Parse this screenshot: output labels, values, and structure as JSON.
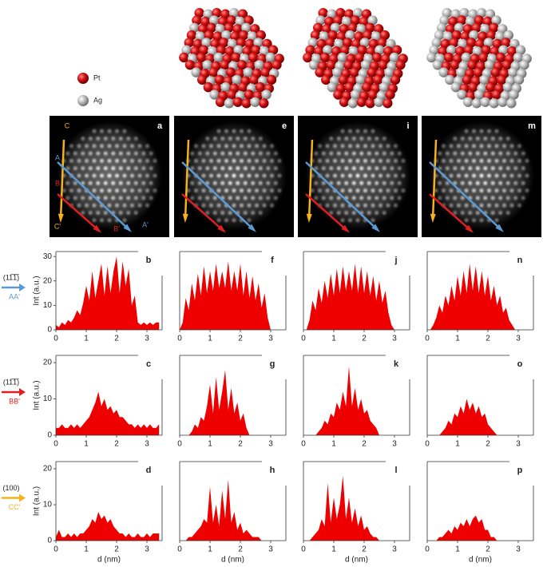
{
  "legend": {
    "items": [
      {
        "name": "Pt",
        "color": "#d01818"
      },
      {
        "name": "Ag",
        "color": "#b8b8b8"
      }
    ]
  },
  "images": [
    {
      "label": "a"
    },
    {
      "label": "e"
    },
    {
      "label": "i"
    },
    {
      "label": "m"
    }
  ],
  "image_annotations": {
    "start": [
      "C",
      "A",
      "B"
    ],
    "end": [
      "C'",
      "B'",
      "A'"
    ]
  },
  "row_labels": [
    {
      "plane": "(11̅1̅)",
      "path": "AA'",
      "color": "#5b9bd5"
    },
    {
      "plane": "(11̅1̅)",
      "path": "BB'",
      "color": "#e02020"
    },
    {
      "plane": "(100)",
      "path": "CC'",
      "color": "#f5b21c"
    }
  ],
  "chart_data": [
    {
      "type": "area",
      "panel": "b",
      "color": "#ee0000",
      "ylabel": "Int (a.u.)",
      "xlim": [
        0,
        3.5
      ],
      "xticks": [
        0,
        1,
        2,
        3
      ],
      "ylim": [
        0,
        32
      ],
      "yticks": [
        0,
        10,
        20,
        30
      ],
      "x": [
        0,
        0.1,
        0.2,
        0.3,
        0.4,
        0.5,
        0.6,
        0.7,
        0.8,
        0.9,
        1,
        1.1,
        1.2,
        1.3,
        1.4,
        1.5,
        1.6,
        1.7,
        1.8,
        1.9,
        2,
        2.1,
        2.2,
        2.3,
        2.4,
        2.5,
        2.6,
        2.7,
        2.8,
        2.9,
        3,
        3.1,
        3.2,
        3.3,
        3.4
      ],
      "values": [
        2,
        1,
        3,
        2,
        4,
        3,
        5,
        8,
        6,
        11,
        18,
        12,
        24,
        13,
        20,
        27,
        14,
        26,
        15,
        24,
        30,
        15,
        28,
        18,
        25,
        10,
        14,
        3,
        2,
        3,
        2,
        3,
        2,
        3,
        3
      ]
    },
    {
      "type": "area",
      "panel": "f",
      "color": "#ee0000",
      "xlim": [
        0,
        3.5
      ],
      "xticks": [
        0,
        1,
        2,
        3
      ],
      "ylim": [
        0,
        32
      ],
      "x": [
        0,
        0.1,
        0.2,
        0.3,
        0.4,
        0.5,
        0.6,
        0.7,
        0.8,
        0.9,
        1,
        1.1,
        1.2,
        1.3,
        1.4,
        1.5,
        1.6,
        1.7,
        1.8,
        1.9,
        2,
        2.1,
        2.2,
        2.3,
        2.4,
        2.5,
        2.6,
        2.7,
        2.8,
        2.9,
        3,
        3.1,
        3.2,
        3.3,
        3.4
      ],
      "values": [
        0,
        3,
        13,
        8,
        19,
        12,
        23,
        14,
        26,
        15,
        24,
        16,
        27,
        17,
        24,
        17,
        28,
        16,
        24,
        16,
        27,
        14,
        24,
        13,
        22,
        12,
        19,
        9,
        15,
        5,
        0,
        0,
        0,
        0,
        0
      ]
    },
    {
      "type": "area",
      "panel": "j",
      "color": "#ee0000",
      "xlim": [
        0,
        3.5
      ],
      "xticks": [
        0,
        1,
        2,
        3
      ],
      "ylim": [
        0,
        32
      ],
      "x": [
        0,
        0.1,
        0.2,
        0.3,
        0.4,
        0.5,
        0.6,
        0.7,
        0.8,
        0.9,
        1,
        1.1,
        1.2,
        1.3,
        1.4,
        1.5,
        1.6,
        1.7,
        1.8,
        1.9,
        2,
        2.1,
        2.2,
        2.3,
        2.4,
        2.5,
        2.6,
        2.7,
        2.8,
        2.9,
        3,
        3.1,
        3.2,
        3.3,
        3.4
      ],
      "values": [
        0,
        0,
        4,
        12,
        8,
        17,
        11,
        20,
        13,
        23,
        14,
        25,
        15,
        26,
        16,
        24,
        16,
        27,
        15,
        26,
        15,
        24,
        14,
        22,
        12,
        20,
        11,
        16,
        7,
        2,
        0,
        0,
        0,
        0,
        0
      ]
    },
    {
      "type": "area",
      "panel": "n",
      "color": "#ee0000",
      "xlim": [
        0,
        3.5
      ],
      "xticks": [
        0,
        1,
        2,
        3
      ],
      "ylim": [
        0,
        32
      ],
      "x": [
        0,
        0.1,
        0.2,
        0.3,
        0.4,
        0.5,
        0.6,
        0.7,
        0.8,
        0.9,
        1,
        1.1,
        1.2,
        1.3,
        1.4,
        1.5,
        1.6,
        1.7,
        1.8,
        1.9,
        2,
        2.1,
        2.2,
        2.3,
        2.4,
        2.5,
        2.6,
        2.7,
        2.8,
        2.9,
        3,
        3.1,
        3.2,
        3.3,
        3.4
      ],
      "values": [
        0,
        0,
        2,
        5,
        10,
        7,
        14,
        10,
        18,
        12,
        22,
        14,
        24,
        15,
        27,
        16,
        26,
        15,
        24,
        14,
        22,
        12,
        18,
        10,
        14,
        7,
        9,
        4,
        2,
        0,
        0,
        0,
        0,
        0,
        0
      ]
    },
    {
      "type": "area",
      "panel": "c",
      "color": "#ee0000",
      "ylabel": "Int (a.u.)",
      "xlim": [
        0,
        3.5
      ],
      "xticks": [
        0,
        1,
        2,
        3
      ],
      "ylim": [
        0,
        22
      ],
      "yticks": [
        0,
        10,
        20
      ],
      "x": [
        0,
        0.1,
        0.2,
        0.3,
        0.4,
        0.5,
        0.6,
        0.7,
        0.8,
        0.9,
        1,
        1.1,
        1.2,
        1.3,
        1.4,
        1.5,
        1.6,
        1.7,
        1.8,
        1.9,
        2,
        2.1,
        2.2,
        2.3,
        2.4,
        2.5,
        2.6,
        2.7,
        2.8,
        2.9,
        3,
        3.1,
        3.2,
        3.3,
        3.4
      ],
      "values": [
        2,
        2,
        3,
        2,
        2,
        3,
        2,
        3,
        2,
        3,
        4,
        5,
        7,
        9,
        12,
        8,
        10,
        7,
        8,
        6,
        7,
        5,
        5,
        4,
        3,
        3,
        2,
        3,
        2,
        3,
        2,
        3,
        2,
        2,
        3
      ]
    },
    {
      "type": "area",
      "panel": "g",
      "color": "#ee0000",
      "xlim": [
        0,
        3.5
      ],
      "xticks": [
        0,
        1,
        2,
        3
      ],
      "ylim": [
        0,
        22
      ],
      "x": [
        0,
        0.1,
        0.2,
        0.3,
        0.4,
        0.5,
        0.6,
        0.7,
        0.8,
        0.9,
        1,
        1.1,
        1.2,
        1.3,
        1.4,
        1.5,
        1.6,
        1.7,
        1.8,
        1.9,
        2,
        2.1,
        2.2,
        2.3,
        2.4,
        2.5,
        2.6,
        2.7,
        2.8,
        2.9,
        3,
        3.1,
        3.2,
        3.3,
        3.4
      ],
      "values": [
        0,
        0,
        0,
        0,
        1,
        3,
        2,
        5,
        4,
        8,
        14,
        6,
        16,
        7,
        12,
        18,
        7,
        13,
        6,
        9,
        4,
        6,
        2,
        0,
        0,
        0,
        0,
        0,
        0,
        0,
        0,
        0,
        0,
        0,
        0
      ]
    },
    {
      "type": "area",
      "panel": "k",
      "color": "#ee0000",
      "xlim": [
        0,
        3.5
      ],
      "xticks": [
        0,
        1,
        2,
        3
      ],
      "ylim": [
        0,
        22
      ],
      "x": [
        0,
        0.1,
        0.2,
        0.3,
        0.4,
        0.5,
        0.6,
        0.7,
        0.8,
        0.9,
        1,
        1.1,
        1.2,
        1.3,
        1.4,
        1.5,
        1.6,
        1.7,
        1.8,
        1.9,
        2,
        2.1,
        2.2,
        2.3,
        2.4,
        2.5,
        2.6,
        2.7,
        2.8,
        2.9,
        3,
        3.1,
        3.2,
        3.3,
        3.4
      ],
      "values": [
        0,
        0,
        0,
        0,
        0,
        1,
        2,
        4,
        3,
        6,
        5,
        9,
        7,
        12,
        8,
        19,
        8,
        13,
        7,
        10,
        6,
        7,
        4,
        3,
        2,
        0,
        0,
        0,
        0,
        0,
        0,
        0,
        0,
        0,
        0
      ]
    },
    {
      "type": "area",
      "panel": "o",
      "color": "#ee0000",
      "xlim": [
        0,
        3.5
      ],
      "xticks": [
        0,
        1,
        2,
        3
      ],
      "ylim": [
        0,
        22
      ],
      "x": [
        0,
        0.1,
        0.2,
        0.3,
        0.4,
        0.5,
        0.6,
        0.7,
        0.8,
        0.9,
        1,
        1.1,
        1.2,
        1.3,
        1.4,
        1.5,
        1.6,
        1.7,
        1.8,
        1.9,
        2,
        2.1,
        2.2,
        2.3,
        2.4,
        2.5,
        2.6,
        2.7,
        2.8,
        2.9,
        3,
        3.1,
        3.2,
        3.3,
        3.4
      ],
      "values": [
        0,
        0,
        0,
        0,
        0,
        1,
        2,
        4,
        3,
        6,
        5,
        8,
        6,
        10,
        7,
        9,
        6,
        8,
        5,
        6,
        3,
        2,
        1,
        0,
        0,
        0,
        0,
        0,
        0,
        0,
        0,
        0,
        0,
        0,
        0
      ]
    },
    {
      "type": "area",
      "panel": "d",
      "color": "#ee0000",
      "ylabel": "Int (a.u.)",
      "xlabel": "d (nm)",
      "xlim": [
        0,
        3.5
      ],
      "xticks": [
        0,
        1,
        2,
        3
      ],
      "ylim": [
        0,
        22
      ],
      "yticks": [
        0,
        10,
        20
      ],
      "x": [
        0,
        0.1,
        0.2,
        0.3,
        0.4,
        0.5,
        0.6,
        0.7,
        0.8,
        0.9,
        1,
        1.1,
        1.2,
        1.3,
        1.4,
        1.5,
        1.6,
        1.7,
        1.8,
        1.9,
        2,
        2.1,
        2.2,
        2.3,
        2.4,
        2.5,
        2.6,
        2.7,
        2.8,
        2.9,
        3,
        3.1,
        3.2,
        3.3,
        3.4
      ],
      "values": [
        1,
        3,
        1,
        1,
        2,
        1,
        2,
        1,
        2,
        2,
        3,
        4,
        6,
        5,
        8,
        6,
        7,
        5,
        6,
        4,
        3,
        2,
        2,
        1,
        2,
        1,
        1,
        2,
        1,
        1,
        2,
        1,
        2,
        2,
        2
      ]
    },
    {
      "type": "area",
      "panel": "h",
      "color": "#ee0000",
      "xlabel": "d (nm)",
      "xlim": [
        0,
        3.5
      ],
      "xticks": [
        0,
        1,
        2,
        3
      ],
      "ylim": [
        0,
        22
      ],
      "x": [
        0,
        0.1,
        0.2,
        0.3,
        0.4,
        0.5,
        0.6,
        0.7,
        0.8,
        0.9,
        1,
        1.1,
        1.2,
        1.3,
        1.4,
        1.5,
        1.6,
        1.7,
        1.8,
        1.9,
        2,
        2.1,
        2.2,
        2.3,
        2.4,
        2.5,
        2.6,
        2.7,
        2.8,
        2.9,
        3,
        3.1,
        3.2,
        3.3,
        3.4
      ],
      "values": [
        0,
        0,
        0,
        1,
        1,
        2,
        3,
        4,
        6,
        5,
        15,
        5,
        10,
        4,
        14,
        6,
        17,
        5,
        8,
        3,
        5,
        2,
        3,
        2,
        1,
        1,
        1,
        0,
        0,
        0,
        0,
        0,
        0,
        0,
        0
      ]
    },
    {
      "type": "area",
      "panel": "l",
      "color": "#ee0000",
      "xlabel": "d (nm)",
      "xlim": [
        0,
        3.5
      ],
      "xticks": [
        0,
        1,
        2,
        3
      ],
      "ylim": [
        0,
        22
      ],
      "x": [
        0,
        0.1,
        0.2,
        0.3,
        0.4,
        0.5,
        0.6,
        0.7,
        0.8,
        0.9,
        1,
        1.1,
        1.2,
        1.3,
        1.4,
        1.5,
        1.6,
        1.7,
        1.8,
        1.9,
        2,
        2.1,
        2.2,
        2.3,
        2.4,
        2.5,
        2.6,
        2.7,
        2.8,
        2.9,
        3,
        3.1,
        3.2,
        3.3,
        3.4
      ],
      "values": [
        0,
        0,
        0,
        1,
        2,
        3,
        6,
        4,
        16,
        5,
        12,
        6,
        10,
        18,
        6,
        12,
        5,
        9,
        4,
        7,
        3,
        4,
        2,
        1,
        1,
        0,
        0,
        0,
        0,
        0,
        0,
        0,
        0,
        0,
        0
      ]
    },
    {
      "type": "area",
      "panel": "p",
      "color": "#ee0000",
      "xlabel": "d (nm)",
      "xlim": [
        0,
        3.5
      ],
      "xticks": [
        0,
        1,
        2,
        3
      ],
      "ylim": [
        0,
        22
      ],
      "x": [
        0,
        0.1,
        0.2,
        0.3,
        0.4,
        0.5,
        0.6,
        0.7,
        0.8,
        0.9,
        1,
        1.1,
        1.2,
        1.3,
        1.4,
        1.5,
        1.6,
        1.7,
        1.8,
        1.9,
        2,
        2.1,
        2.2,
        2.3,
        2.4,
        2.5,
        2.6,
        2.7,
        2.8,
        2.9,
        3,
        3.1,
        3.2,
        3.3,
        3.4
      ],
      "values": [
        0,
        0,
        0,
        0,
        1,
        1,
        2,
        3,
        2,
        4,
        3,
        5,
        4,
        6,
        4,
        6,
        7,
        5,
        6,
        3,
        3,
        1,
        1,
        0,
        0,
        0,
        0,
        0,
        0,
        0,
        0,
        0,
        0,
        0,
        0
      ]
    }
  ]
}
